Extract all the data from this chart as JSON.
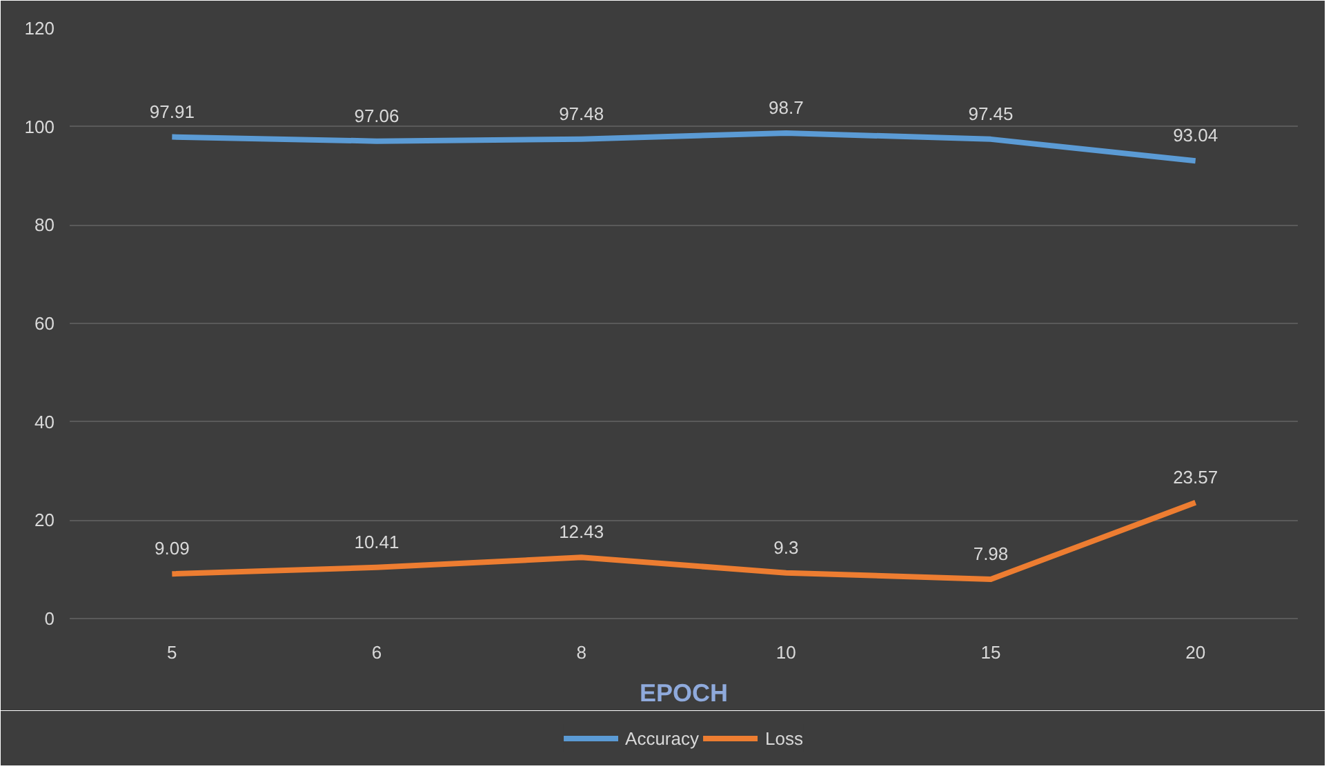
{
  "chart_data": {
    "type": "line",
    "xlabel": "EPOCH",
    "categories": [
      "5",
      "6",
      "8",
      "10",
      "15",
      "20"
    ],
    "series": [
      {
        "name": "Accuracy",
        "color": "#5b9bd5",
        "values": [
          97.91,
          97.06,
          97.48,
          98.7,
          97.45,
          93.04
        ]
      },
      {
        "name": "Loss",
        "color": "#ed7d31",
        "values": [
          9.09,
          10.41,
          12.43,
          9.3,
          7.98,
          23.57
        ]
      }
    ],
    "ylim": [
      0,
      120
    ],
    "yticks": [
      0,
      20,
      40,
      60,
      80,
      100,
      120
    ],
    "grid": "y",
    "legend": "bottom",
    "data_labels": true,
    "marker": "none",
    "line_style": "solid"
  }
}
